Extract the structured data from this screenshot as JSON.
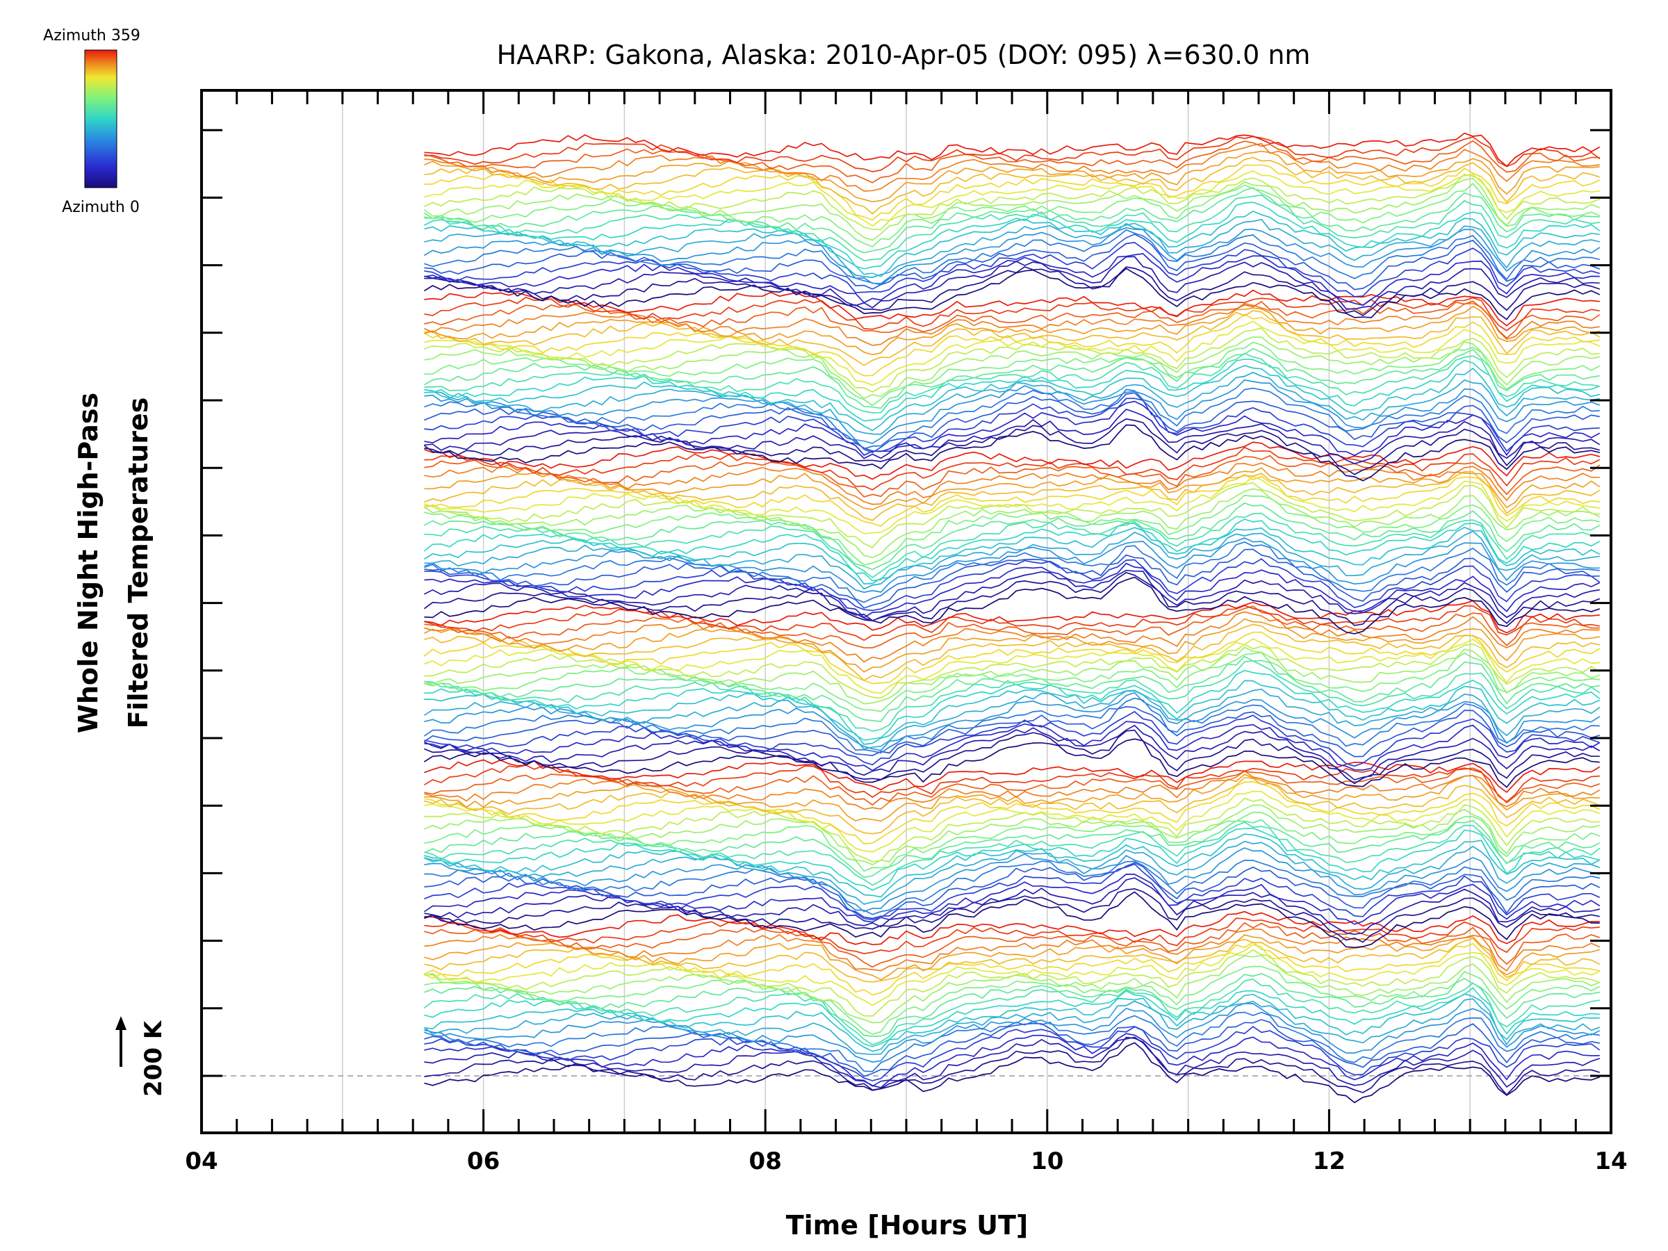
{
  "chart_data": {
    "type": "line",
    "title": "HAARP: Gakona,  Alaska: 2010-Apr-05 (DOY: 095) λ=630.0 nm",
    "xlabel": "Time [Hours UT]",
    "ylabel_line1": "Whole Night High-Pass",
    "ylabel_line2": "Filtered Temperatures",
    "xlim": [
      4,
      14
    ],
    "x_ticks": [
      "04",
      "06",
      "08",
      "10",
      "12",
      "14"
    ],
    "x_tick_values": [
      4,
      6,
      8,
      10,
      12,
      14
    ],
    "x_minor_step_hours": 0.25,
    "vertical_gridlines": [
      5,
      6,
      7,
      8,
      9,
      10,
      11,
      12,
      13,
      14
    ],
    "scale_bar_label": "200 K",
    "data_start_hour": 5.58,
    "data_end_hour": 13.92,
    "trace_count": 144,
    "traces_per_azimuth_cycle": 24,
    "colorbar": {
      "top_label": "Azimuth 359",
      "bottom_label": "Azimuth 0",
      "colors": [
        "#1a0a7a",
        "#2a2ad0",
        "#2a8ae0",
        "#30d6c8",
        "#7ef27e",
        "#f0e830",
        "#f08a20",
        "#e81a0a"
      ]
    },
    "common_features": [
      {
        "hour": 8.5,
        "description_value": -1.0
      },
      {
        "hour": 8.9,
        "description_value": -0.6
      },
      {
        "hour": 9.9,
        "description_value": 0.5
      },
      {
        "hour": 10.6,
        "description_value": 0.8
      },
      {
        "hour": 11.5,
        "description_value": 0.9
      },
      {
        "hour": 12.2,
        "description_value": -0.8
      },
      {
        "hour": 13.0,
        "description_value": 0.6
      },
      {
        "hour": 13.25,
        "description_value": -1.0
      }
    ],
    "grid": true,
    "legend": "colorbar top-left"
  }
}
